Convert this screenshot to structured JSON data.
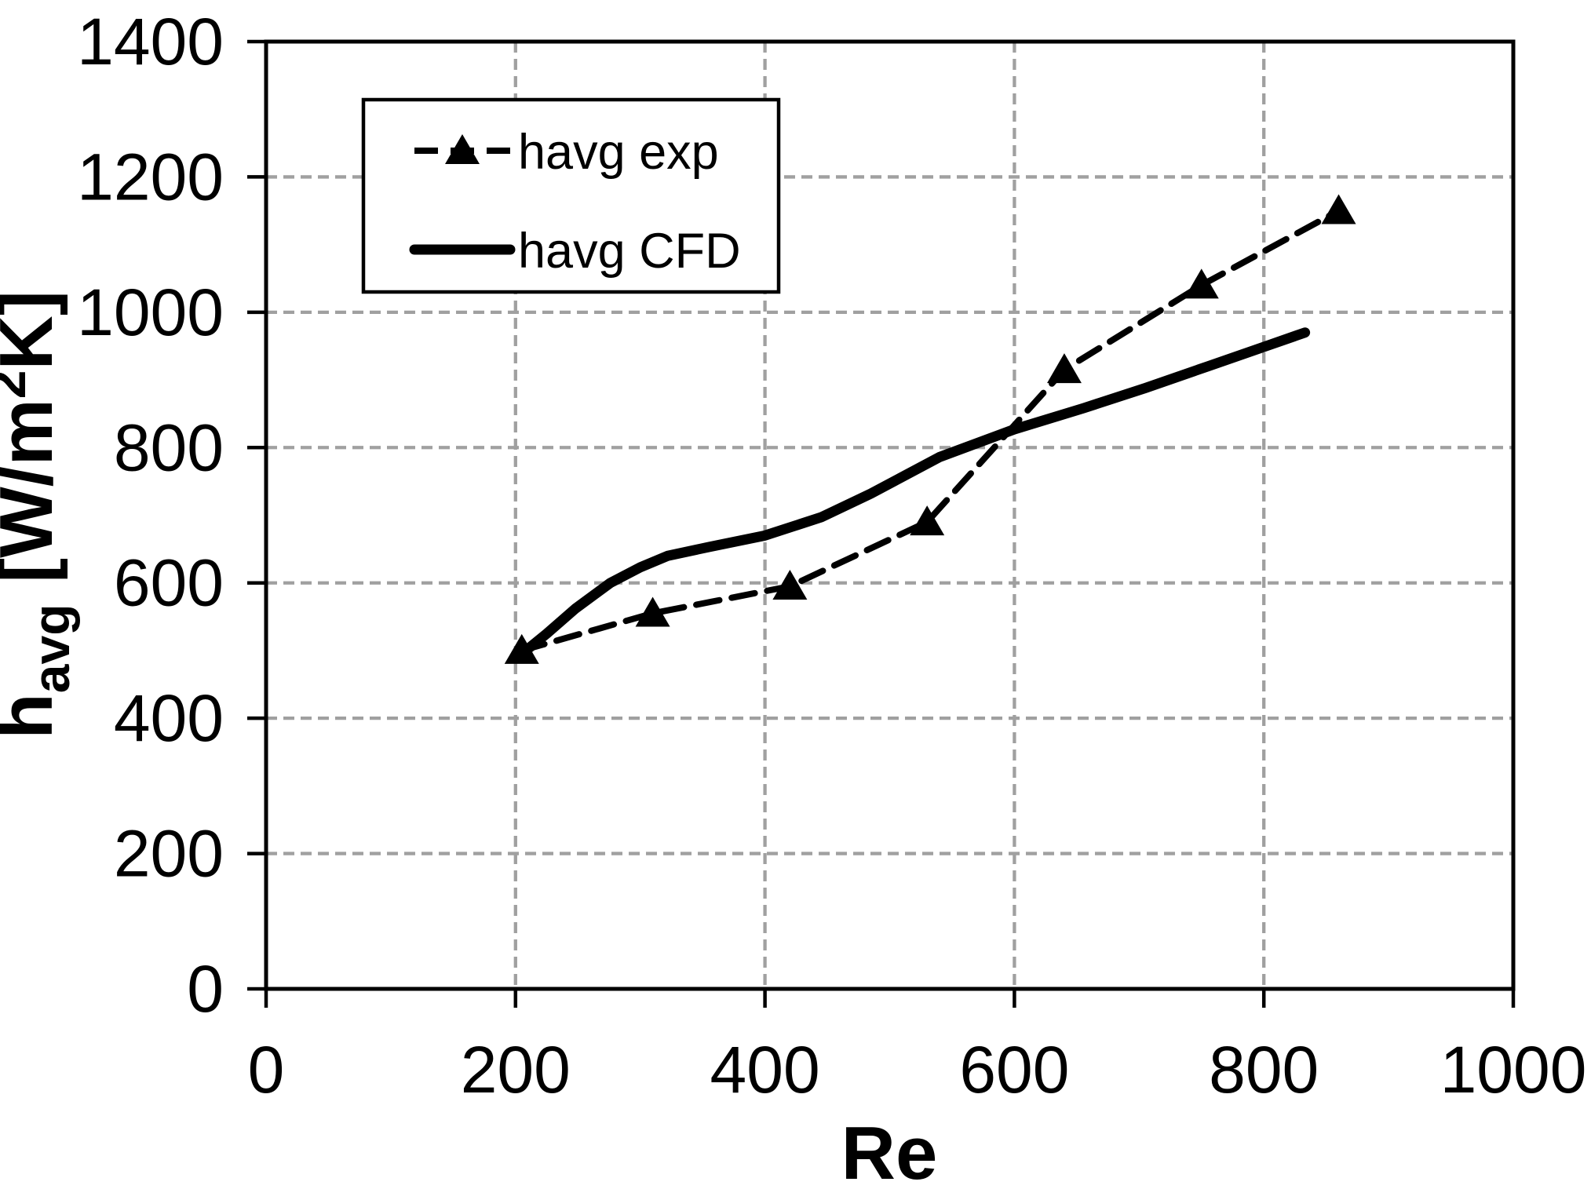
{
  "figure": {
    "background": "#ffffff",
    "grid_color": "#a0a0a0",
    "line_color": "#000000"
  },
  "legend": {
    "position": "upper-left-inside",
    "entries": [
      {
        "label": "havg exp",
        "series": "exp"
      },
      {
        "label": "havg CFD",
        "series": "cfd"
      }
    ]
  },
  "chart_data": {
    "type": "line",
    "title": "",
    "xlabel": "Re",
    "ylabel": "havg [W/m2K]",
    "ylabel_parts": [
      {
        "text": "h"
      },
      {
        "text": "avg",
        "script": "sub"
      },
      {
        "text": " [W/m"
      },
      {
        "text": "2",
        "script": "super"
      },
      {
        "text": "K]"
      }
    ],
    "xlim": [
      0,
      1000
    ],
    "ylim": [
      0,
      1400
    ],
    "x_ticks": [
      0,
      200,
      400,
      600,
      800,
      1000
    ],
    "y_ticks": [
      0,
      200,
      400,
      600,
      800,
      1000,
      1200,
      1400
    ],
    "grid": true,
    "grid_style": "dashed",
    "series": [
      {
        "name": "havg exp",
        "id": "exp",
        "line_style": "dashed",
        "marker": "triangle-up",
        "color": "#000000",
        "points": [
          [
            205,
            500
          ],
          [
            310,
            555
          ],
          [
            420,
            595
          ],
          [
            530,
            690
          ],
          [
            640,
            915
          ],
          [
            750,
            1040
          ],
          [
            860,
            1150
          ]
        ]
      },
      {
        "name": "havg CFD",
        "id": "cfd",
        "line_style": "solid",
        "marker": "none",
        "color": "#000000",
        "points": [
          [
            205,
            495
          ],
          [
            225,
            525
          ],
          [
            248,
            562
          ],
          [
            276,
            600
          ],
          [
            300,
            623
          ],
          [
            322,
            640
          ],
          [
            355,
            653
          ],
          [
            400,
            670
          ],
          [
            445,
            697
          ],
          [
            485,
            732
          ],
          [
            540,
            786
          ],
          [
            600,
            827
          ],
          [
            655,
            858
          ],
          [
            705,
            888
          ],
          [
            755,
            920
          ],
          [
            805,
            952
          ],
          [
            833,
            970
          ]
        ]
      }
    ]
  }
}
